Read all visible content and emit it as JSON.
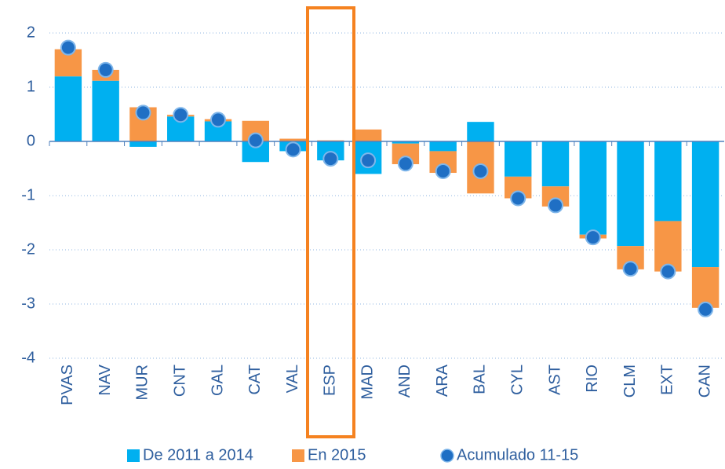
{
  "chart_data": {
    "type": "bar",
    "stacked": true,
    "categories": [
      "PVAS",
      "NAV",
      "MUR",
      "CNT",
      "GAL",
      "CAT",
      "VAL",
      "ESP",
      "MAD",
      "AND",
      "ARA",
      "BAL",
      "CYL",
      "AST",
      "RIO",
      "CLM",
      "EXT",
      "CAN"
    ],
    "series": [
      {
        "name": "De 2011 a 2014",
        "color": "#00b0f0",
        "values": [
          1.2,
          1.12,
          -0.1,
          0.46,
          0.37,
          -0.38,
          -0.18,
          -0.35,
          -0.6,
          -0.04,
          -0.18,
          0.36,
          -0.65,
          -0.83,
          -1.72,
          -1.93,
          -1.47,
          -2.32
        ]
      },
      {
        "name": "En 2015",
        "color": "#f79646",
        "values": [
          0.5,
          0.2,
          0.63,
          0.03,
          0.04,
          0.38,
          0.05,
          0.02,
          0.22,
          -0.38,
          -0.4,
          -0.96,
          -0.4,
          -0.37,
          -0.07,
          -0.43,
          -0.93,
          -0.75
        ]
      },
      {
        "name": "Acumulado 11-15",
        "type": "scatter",
        "color": "#1f6fc4",
        "values": [
          1.73,
          1.32,
          0.53,
          0.49,
          0.4,
          0.02,
          -0.15,
          -0.32,
          -0.35,
          -0.41,
          -0.55,
          -0.55,
          -1.05,
          -1.18,
          -1.77,
          -2.35,
          -2.4,
          -3.1
        ]
      }
    ],
    "ylim": [
      -4,
      2
    ],
    "yticks": [
      2,
      1,
      0,
      -1,
      -2,
      -3,
      -4
    ],
    "grid": true,
    "legend": "bottom"
  }
}
